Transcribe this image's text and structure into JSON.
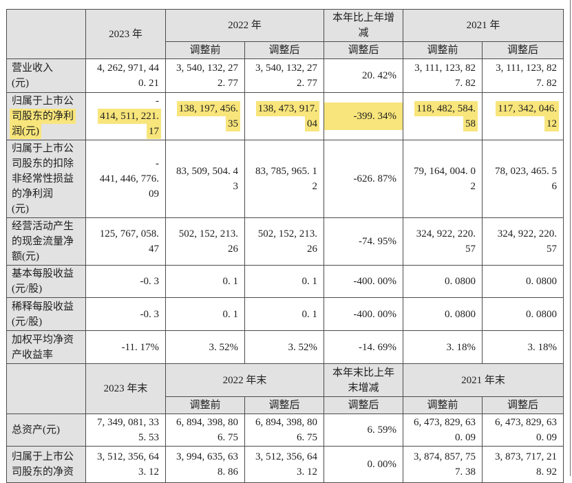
{
  "colors": {
    "header_bg": "#e2e2e2",
    "highlight_yellow": "#f8e57b",
    "border": "#4a4a4a"
  },
  "table": {
    "sections": [
      {
        "header": {
          "corner": "",
          "col_single": "2023 年",
          "col_group_a": "2022 年",
          "col_change_lines": [
            "本年比上年增",
            "减"
          ],
          "col_group_b": "2021 年",
          "subheaders": [
            "调整前",
            "调整后",
            "调整后",
            "调整前",
            "调整后"
          ]
        },
        "rows": [
          {
            "label": {
              "lines": [
                "营业收入",
                "(元)"
              ]
            },
            "cells": [
              {
                "lines": [
                  "4, 262, 971, 44",
                  "0. 21"
                ]
              },
              {
                "lines": [
                  "3, 540, 132, 27",
                  "2. 77"
                ]
              },
              {
                "lines": [
                  "3, 540, 132, 27",
                  "2. 77"
                ]
              },
              {
                "lines": [
                  "20. 42%"
                ]
              },
              {
                "lines": [
                  "3, 111, 123, 82",
                  "7. 82"
                ]
              },
              {
                "lines": [
                  "3, 111, 123, 82",
                  "7. 82"
                ]
              }
            ]
          },
          {
            "label": {
              "lines": [
                "归属于上市公",
                "司股东的净利",
                "润(元)"
              ],
              "hl": [
                false,
                true,
                true
              ]
            },
            "cells": [
              {
                "lines": [
                  "-",
                  "414, 511, 221.",
                  "17"
                ],
                "hl": [
                  false,
                  true,
                  true
                ]
              },
              {
                "lines": [
                  "138, 197, 456.",
                  "35"
                ],
                "hl": [
                  true,
                  true
                ]
              },
              {
                "lines": [
                  "138, 473, 917.",
                  "04"
                ],
                "hl": [
                  true,
                  true
                ]
              },
              {
                "lines": [
                  "-399. 34%"
                ],
                "band": true
              },
              {
                "lines": [
                  "118, 482, 584.",
                  "58"
                ],
                "hl": [
                  true,
                  true
                ]
              },
              {
                "lines": [
                  "117, 342, 046.",
                  "12"
                ],
                "hl": [
                  true,
                  true
                ]
              }
            ]
          },
          {
            "label": {
              "lines": [
                "归属于上市公",
                "司股东的扣除",
                "非经常性损益",
                "的净利润",
                "(元)"
              ]
            },
            "cells": [
              {
                "lines": [
                  "-",
                  "441, 446, 776.",
                  "09"
                ]
              },
              {
                "lines": [
                  "83, 509, 504. 4",
                  "3"
                ]
              },
              {
                "lines": [
                  "83, 785, 965. 1",
                  "2"
                ]
              },
              {
                "lines": [
                  "-626. 87%"
                ]
              },
              {
                "lines": [
                  "79, 164, 004. 0",
                  "2"
                ]
              },
              {
                "lines": [
                  "78, 023, 465. 5",
                  "6"
                ]
              }
            ]
          },
          {
            "label": {
              "lines": [
                "经营活动产生",
                "的现金流量净",
                "额(元)"
              ]
            },
            "cells": [
              {
                "lines": [
                  "125, 767, 058.",
                  "47"
                ]
              },
              {
                "lines": [
                  "502, 152, 213.",
                  "26"
                ]
              },
              {
                "lines": [
                  "502, 152, 213.",
                  "26"
                ]
              },
              {
                "lines": [
                  "-74. 95%"
                ]
              },
              {
                "lines": [
                  "324, 922, 220.",
                  "57"
                ]
              },
              {
                "lines": [
                  "324, 922, 220.",
                  "57"
                ]
              }
            ]
          },
          {
            "label": {
              "lines": [
                "基本每股收益",
                "(元/股)"
              ]
            },
            "cells": [
              {
                "lines": [
                  "-0. 3"
                ]
              },
              {
                "lines": [
                  "0. 1"
                ]
              },
              {
                "lines": [
                  "0. 1"
                ]
              },
              {
                "lines": [
                  "-400. 00%"
                ]
              },
              {
                "lines": [
                  "0. 0800"
                ]
              },
              {
                "lines": [
                  "0. 0800"
                ]
              }
            ]
          },
          {
            "label": {
              "lines": [
                "稀释每股收益",
                "(元/股)"
              ]
            },
            "cells": [
              {
                "lines": [
                  "-0. 3"
                ]
              },
              {
                "lines": [
                  "0. 1"
                ]
              },
              {
                "lines": [
                  "0. 1"
                ]
              },
              {
                "lines": [
                  "-400. 00%"
                ]
              },
              {
                "lines": [
                  "0. 0800"
                ]
              },
              {
                "lines": [
                  "0. 0800"
                ]
              }
            ]
          },
          {
            "label": {
              "lines": [
                "加权平均净资",
                "产收益率"
              ]
            },
            "cells": [
              {
                "lines": [
                  "-11. 17%"
                ]
              },
              {
                "lines": [
                  "3. 52%"
                ]
              },
              {
                "lines": [
                  "3. 52%"
                ]
              },
              {
                "lines": [
                  "-14. 69%"
                ]
              },
              {
                "lines": [
                  "3. 18%"
                ]
              },
              {
                "lines": [
                  "3. 18%"
                ]
              }
            ]
          }
        ]
      },
      {
        "header": {
          "corner": "",
          "col_single": "2023 年末",
          "col_group_a": "2022 年末",
          "col_change_lines": [
            "本年末比上年",
            "末增减"
          ],
          "col_group_b": "2021 年末",
          "subheaders": [
            "调整前",
            "调整后",
            "调整后",
            "调整前",
            "调整后"
          ]
        },
        "rows": [
          {
            "label": {
              "lines": [
                "总资产(元)"
              ]
            },
            "cells": [
              {
                "lines": [
                  "7, 349, 081, 33",
                  "5. 53"
                ]
              },
              {
                "lines": [
                  "6, 894, 398, 80",
                  "6. 75"
                ]
              },
              {
                "lines": [
                  "6, 894, 398, 80",
                  "6. 75"
                ]
              },
              {
                "lines": [
                  "6. 59%"
                ]
              },
              {
                "lines": [
                  "6, 473, 829, 63",
                  "0. 09"
                ]
              },
              {
                "lines": [
                  "6, 473, 829, 63",
                  "0. 09"
                ]
              }
            ]
          },
          {
            "label": {
              "lines": [
                "归属于上市公",
                "司股东的净资"
              ]
            },
            "cells": [
              {
                "lines": [
                  "3, 512, 356, 64",
                  "3. 12"
                ]
              },
              {
                "lines": [
                  "3, 994, 635, 63",
                  "8. 86"
                ]
              },
              {
                "lines": [
                  "3, 512, 356, 64",
                  "3. 12"
                ]
              },
              {
                "lines": [
                  "0. 00%"
                ]
              },
              {
                "lines": [
                  "3, 874, 857, 75",
                  "7. 38"
                ]
              },
              {
                "lines": [
                  "3, 873, 717, 21",
                  "8. 92"
                ]
              }
            ]
          }
        ]
      }
    ]
  }
}
